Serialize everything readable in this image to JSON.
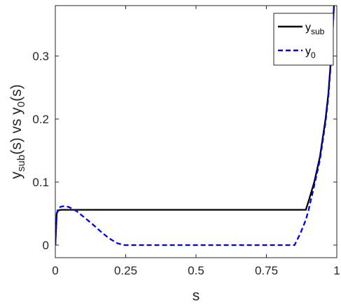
{
  "chart_data": {
    "type": "line",
    "xlabel": "s",
    "ylabel": {
      "base": "y",
      "sub": "sub",
      "mid": "(s) vs y",
      "sub2": "0",
      "end": "(s)"
    },
    "xlim": [
      0,
      1
    ],
    "ylim": [
      -0.02,
      0.38
    ],
    "xticks": [
      0,
      0.25,
      0.5,
      0.75,
      1
    ],
    "xtick_labels": [
      "0",
      "0.25",
      "0.5",
      "0.75",
      "1"
    ],
    "yticks": [
      0,
      0.1,
      0.2,
      0.3
    ],
    "ytick_labels": [
      "0",
      "0.1",
      "0.2",
      "0.3"
    ],
    "grid": false,
    "legend_position": "top-right",
    "series": [
      {
        "name": "y_sub",
        "legend": {
          "base": "y",
          "sub": "sub"
        },
        "color": "#000000",
        "style": "solid",
        "x": [
          0,
          0.005,
          0.01,
          0.02,
          0.89,
          0.9,
          0.92,
          0.94,
          0.96,
          0.97,
          0.98,
          0.985,
          0.99
        ],
        "y": [
          0,
          0.05,
          0.055,
          0.056,
          0.056,
          0.07,
          0.1,
          0.14,
          0.2,
          0.24,
          0.3,
          0.34,
          0.38
        ]
      },
      {
        "name": "y_0",
        "legend": {
          "base": "y",
          "sub": "0"
        },
        "color": "#0000ee",
        "style": "dashed",
        "x": [
          0,
          0.005,
          0.01,
          0.02,
          0.035,
          0.05,
          0.075,
          0.1,
          0.13,
          0.16,
          0.19,
          0.22,
          0.245,
          0.85,
          0.87,
          0.89,
          0.9,
          0.92,
          0.94,
          0.96,
          0.97,
          0.98,
          0.985,
          0.99
        ],
        "y": [
          0,
          0.05,
          0.058,
          0.061,
          0.062,
          0.06,
          0.054,
          0.045,
          0.034,
          0.022,
          0.011,
          0.003,
          0,
          0,
          0.018,
          0.04,
          0.056,
          0.095,
          0.135,
          0.195,
          0.235,
          0.295,
          0.335,
          0.38
        ]
      }
    ]
  }
}
